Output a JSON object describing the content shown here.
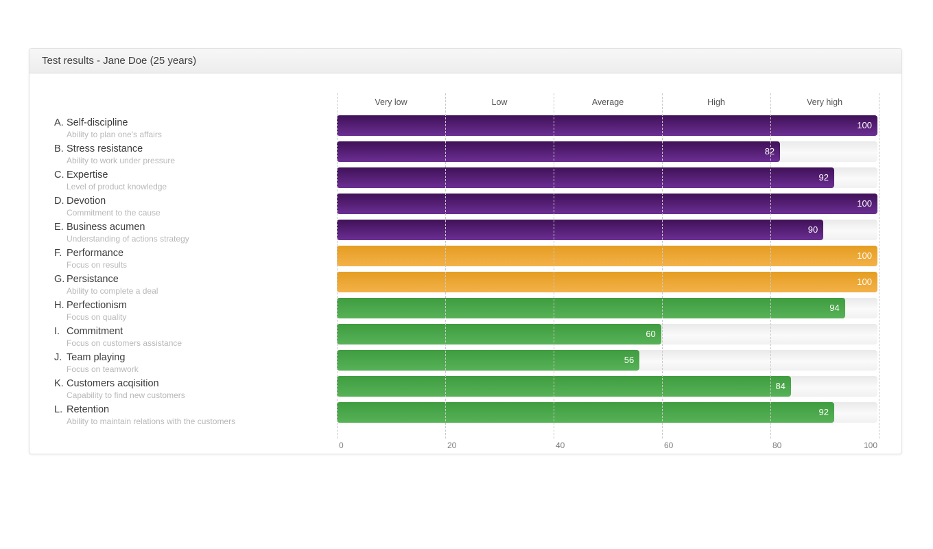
{
  "panel": {
    "title": "Test results - Jane Doe (25 years)"
  },
  "chart_data": {
    "type": "bar",
    "orientation": "horizontal",
    "title": "Test results - Jane Doe (25 years)",
    "xlim": [
      0,
      100
    ],
    "x_ticks": [
      0,
      20,
      40,
      60,
      80,
      100
    ],
    "scale_labels": [
      "Very low",
      "Low",
      "Average",
      "High",
      "Very high"
    ],
    "grid": "vertical-dashed",
    "legend": "none",
    "categories": [
      {
        "letter": "A.",
        "name": "Self-discipline",
        "description": "Ability to plan one's affairs",
        "value": 100,
        "color": "purple"
      },
      {
        "letter": "B.",
        "name": "Stress resistance",
        "description": "Ability to work under pressure",
        "value": 82,
        "color": "purple"
      },
      {
        "letter": "C.",
        "name": "Expertise",
        "description": "Level of product knowledge",
        "value": 92,
        "color": "purple"
      },
      {
        "letter": "D.",
        "name": "Devotion",
        "description": "Commitment to the cause",
        "value": 100,
        "color": "purple"
      },
      {
        "letter": "E.",
        "name": "Business acumen",
        "description": "Understanding of actions strategy",
        "value": 90,
        "color": "purple"
      },
      {
        "letter": "F.",
        "name": "Performance",
        "description": "Focus on results",
        "value": 100,
        "color": "orange"
      },
      {
        "letter": "G.",
        "name": "Persistance",
        "description": "Ability to complete a deal",
        "value": 100,
        "color": "orange"
      },
      {
        "letter": "H.",
        "name": "Perfectionism",
        "description": "Focus on quality",
        "value": 94,
        "color": "green"
      },
      {
        "letter": "I.",
        "name": "Commitment",
        "description": "Focus on customers assistance",
        "value": 60,
        "color": "green"
      },
      {
        "letter": "J.",
        "name": "Team playing",
        "description": "Focus on teamwork",
        "value": 56,
        "color": "green"
      },
      {
        "letter": "K.",
        "name": "Customers acqisition",
        "description": "Capability to find new customers",
        "value": 84,
        "color": "green"
      },
      {
        "letter": "L.",
        "name": "Retention",
        "description": "Ability to maintain relations with the customers",
        "value": 92,
        "color": "green"
      }
    ],
    "colors": {
      "purple": {
        "top": "#401158",
        "bottom": "#6b2e93"
      },
      "orange": {
        "top": "#e59d22",
        "bottom": "#f3b148"
      },
      "green": {
        "top": "#3f9c3f",
        "bottom": "#57b257"
      }
    },
    "track_color": "#efefef",
    "gridline_color": "#c9c9c9",
    "value_label_color": "#ffffff"
  }
}
